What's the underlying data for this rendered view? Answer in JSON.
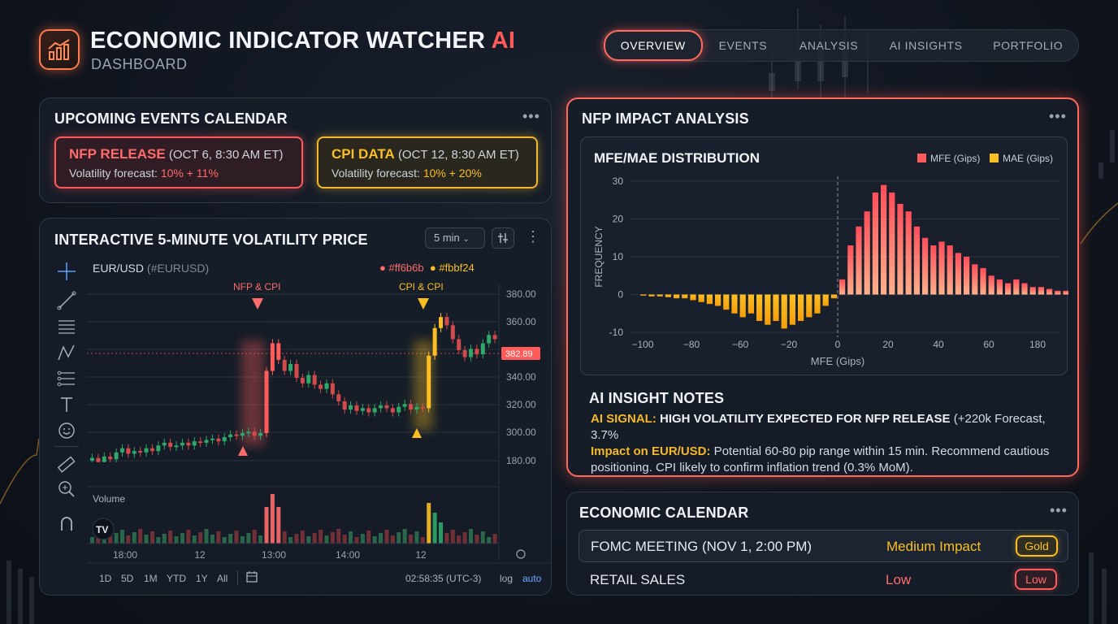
{
  "header": {
    "title_main": "ECONOMIC INDICATOR WATCHER",
    "title_ai": "AI",
    "subtitle": "DASHBOARD"
  },
  "nav": {
    "tabs": [
      {
        "label": "OVERVIEW",
        "active": true
      },
      {
        "label": "EVENTS",
        "active": false
      },
      {
        "label": "ANALYSIS",
        "active": false
      },
      {
        "label": "AI INSIGHTS",
        "active": false
      },
      {
        "label": "PORTFOLIO",
        "active": false
      }
    ]
  },
  "upcoming": {
    "title": "UPCOMING EVENTS CALENDAR",
    "menu": "•••",
    "events": [
      {
        "name": "NFP RELEASE",
        "when": "(OCT 6, 8:30 AM ET)",
        "forecast_label": "Volatility forecast:",
        "forecast_value": "10% + 11%"
      },
      {
        "name": "CPI DATA",
        "when": "(OCT 12, 8:30 AM ET)",
        "forecast_label": "Volatility forecast:",
        "forecast_value": "10% + 20%"
      }
    ]
  },
  "price_chart": {
    "title": "INTERACTIVE 5-MINUTE VOLATILITY PRICE",
    "interval": "5 min",
    "menu": "⋮",
    "symbol": "EUR/USD",
    "symbol_tag": "(#EURUSD)",
    "legend": [
      {
        "label": "#ff6b6b",
        "color": "#ff6b6b"
      },
      {
        "label": "#fbbf24",
        "color": "#fbbf24"
      }
    ],
    "markers": [
      {
        "label": "NFP & CPI",
        "color": "#ff6b6b"
      },
      {
        "label": "CPI & CPI",
        "color": "#fbbf24"
      }
    ],
    "price_ticks": [
      "380.00",
      "360.00",
      "340.00",
      "320.00",
      "300.00",
      "180.00"
    ],
    "current_price": "382.89",
    "volume_label": "Volume",
    "time_ticks": [
      "18:00",
      "12",
      "13:00",
      "14:00",
      "12"
    ],
    "ranges": [
      "1D",
      "5D",
      "1M",
      "YTD",
      "1Y",
      "All"
    ],
    "clock": "02:58:35 (UTC-3)",
    "log_label": "log",
    "auto_label": "auto",
    "tools": [
      "crosshair-icon",
      "trend-line-icon",
      "horizontal-lines-icon",
      "pattern-icon",
      "fib-icon",
      "text-icon",
      "emoji-icon",
      "ruler-icon",
      "zoom-icon",
      "magnet-icon"
    ]
  },
  "nfp": {
    "title": "NFP IMPACT ANALYSIS",
    "menu": "•••",
    "notes_title": "AI INSIGHT NOTES",
    "notes_signal_label": "AI SIGNAL:",
    "notes_signal_text": "HIGH VOLATILITY EXPECTED FOR NFP RELEASE",
    "notes_signal_rest": " (+220k Forecast, 3.7%",
    "notes_impact_label": "Impact on EUR/USD:",
    "notes_impact_text": " Potential 60-80 pip range within 15 min. Recommend cautious positioning. CPI likely to confirm inflation trend (0.3% MoM)."
  },
  "chart_data": {
    "type": "bar",
    "title": "MFE/MAE DISTRIBUTION",
    "xlabel": "MFE (Gips)",
    "ylabel": "FREQUENCY",
    "ylim": [
      -10,
      30
    ],
    "yticks": [
      30,
      20,
      10,
      0,
      -10
    ],
    "xtick_labels": [
      "−100",
      "−80",
      "−60",
      "−20",
      "0",
      "20",
      "40",
      "60",
      "180"
    ],
    "legend": "top-right",
    "grid": true,
    "series": [
      {
        "name": "MFE (Gips)",
        "color": "#ff5b5b",
        "x": [
          0,
          1,
          2,
          3,
          4,
          5,
          6,
          7,
          8,
          9,
          10,
          11,
          12,
          13,
          14,
          15,
          16,
          17,
          18,
          19,
          20,
          21,
          22,
          23,
          24,
          25,
          26,
          27,
          28
        ],
        "values": [
          4,
          13,
          18,
          22,
          27,
          29,
          27,
          24,
          22,
          18,
          15,
          13,
          14,
          13,
          11,
          10,
          8,
          7,
          5,
          4,
          3,
          4,
          3,
          2,
          2,
          1.5,
          1,
          1,
          0.5
        ]
      },
      {
        "name": "MAE (Gips)",
        "color": "#fbbf24",
        "x": [
          -24,
          -23,
          -22,
          -21,
          -20,
          -19,
          -18,
          -17,
          -16,
          -15,
          -14,
          -13,
          -12,
          -11,
          -10,
          -9,
          -8,
          -7,
          -6,
          -5,
          -4,
          -3,
          -2,
          -1
        ],
        "values": [
          -0.3,
          -0.5,
          -0.5,
          -0.7,
          -1,
          -1,
          -1.5,
          -2,
          -2.5,
          -3,
          -4,
          -5,
          -6,
          -5,
          -7,
          -8,
          -7,
          -9,
          -8,
          -7,
          -6,
          -5,
          -3,
          -1
        ]
      }
    ]
  },
  "calendar": {
    "title": "ECONOMIC CALENDAR",
    "menu": "•••",
    "rows": [
      {
        "name": "FOMC MEETING (NOV 1, 2:00 PM)",
        "impact": "Medium Impact",
        "impact_color": "#fbbf24",
        "badge": "Gold"
      },
      {
        "name": "RETAIL SALES",
        "impact": "Low",
        "impact_color": "#ff6b6b",
        "badge": "Low"
      }
    ]
  },
  "colors": {
    "red": "#ff5b5b",
    "yellow": "#fbbf24",
    "green": "#2fa86a"
  }
}
